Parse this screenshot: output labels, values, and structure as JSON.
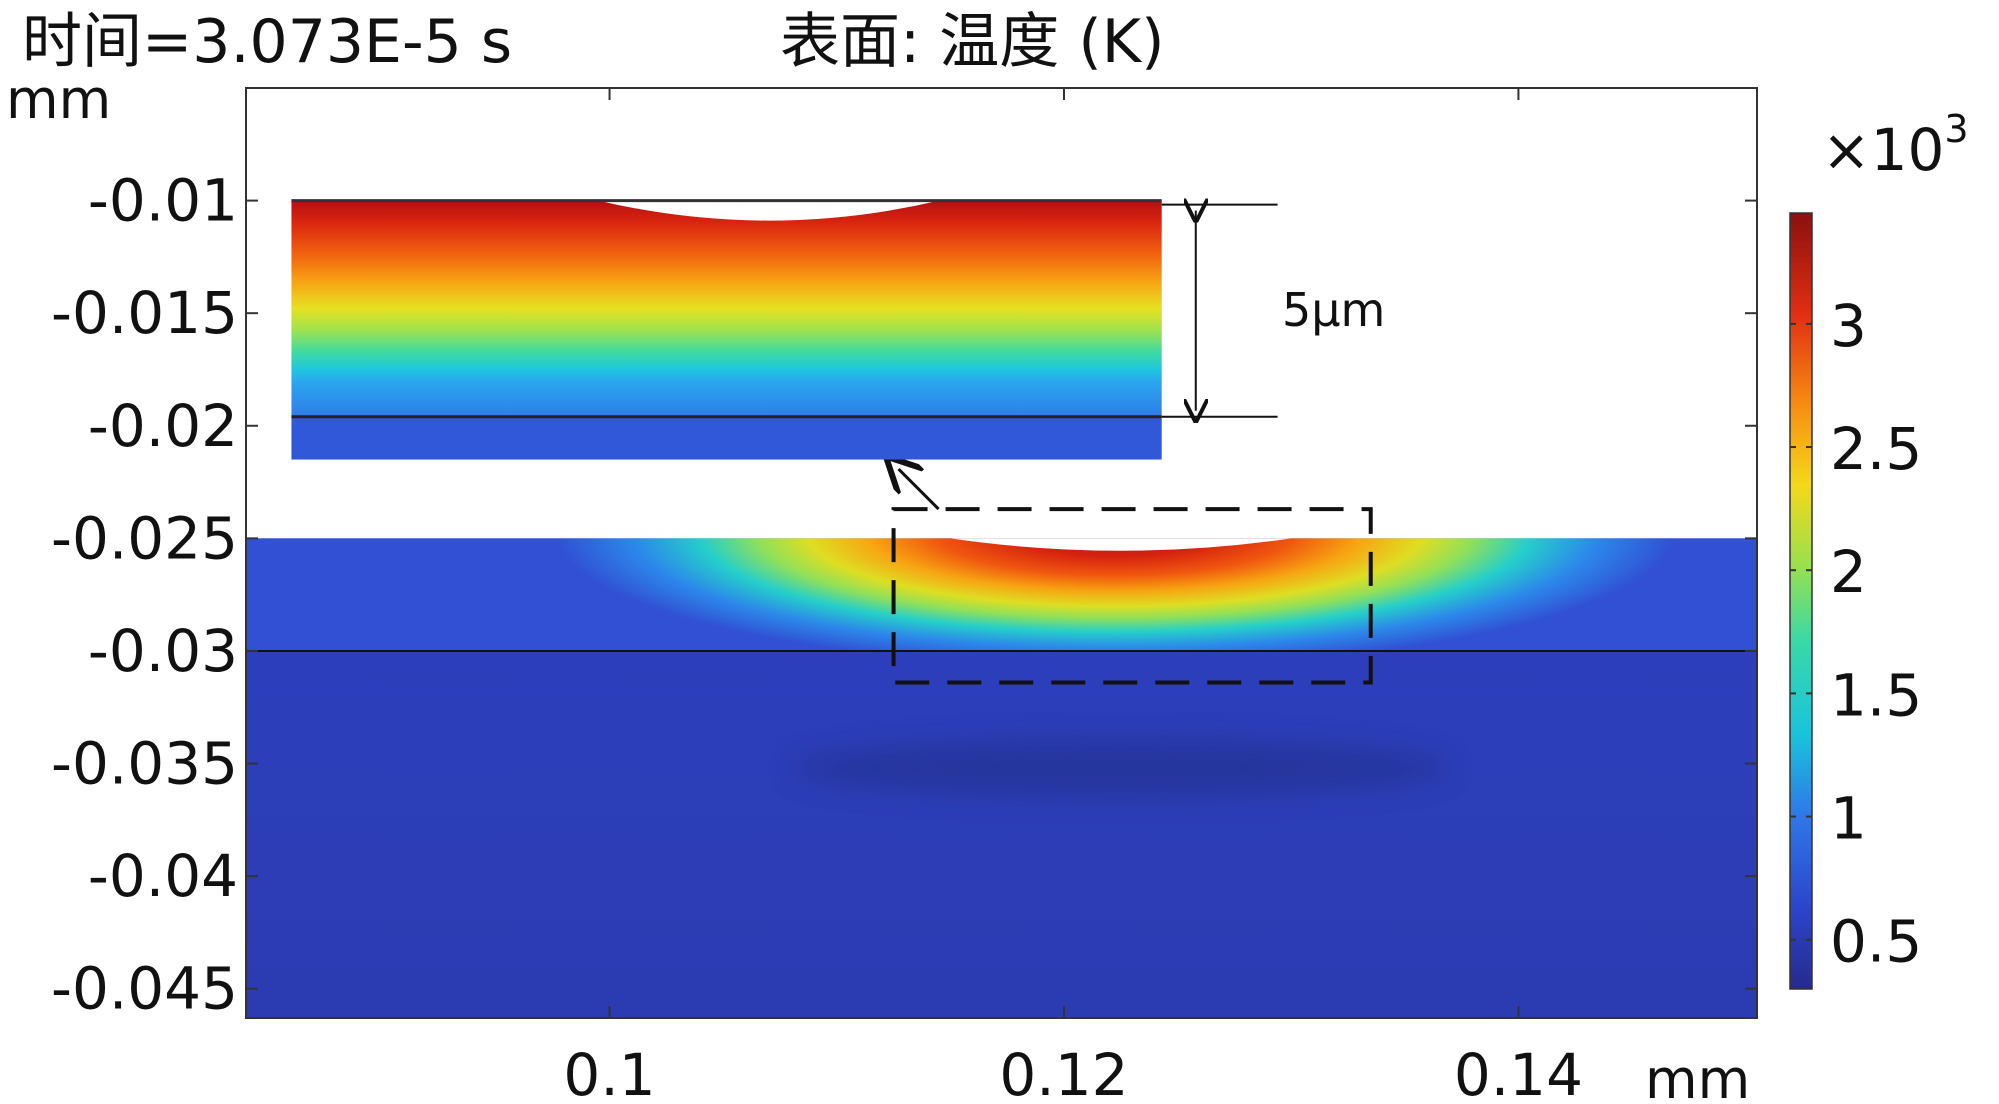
{
  "header": {
    "time_label": "时间=3.073E-5 s",
    "plot_title": "表面: 温度 (K)"
  },
  "chart_data": {
    "type": "heatmap",
    "title": "表面: 温度 (K)",
    "time_label": "时间=3.073E-5 s",
    "xlabel": "mm",
    "ylabel": "mm",
    "xlim": [
      0.084,
      0.1505
    ],
    "ylim": [
      -0.0463,
      -0.005
    ],
    "x_ticks": [
      {
        "value": 0.1,
        "label": "0.1"
      },
      {
        "value": 0.12,
        "label": "0.12"
      },
      {
        "value": 0.14,
        "label": "0.14"
      }
    ],
    "y_ticks": [
      {
        "value": -0.01,
        "label": "-0.01"
      },
      {
        "value": -0.015,
        "label": "-0.015"
      },
      {
        "value": -0.02,
        "label": "-0.02"
      },
      {
        "value": -0.025,
        "label": "-0.025"
      },
      {
        "value": -0.03,
        "label": "-0.03"
      },
      {
        "value": -0.035,
        "label": "-0.035"
      },
      {
        "value": -0.04,
        "label": "-0.04"
      },
      {
        "value": -0.045,
        "label": "-0.045"
      }
    ],
    "grid": false,
    "colormap": "rainbow",
    "colorbar": {
      "multiplier_prefix": "×10",
      "multiplier_exp": "3",
      "min": 0.3,
      "max": 3.45,
      "ticks": [
        {
          "value": 0.5,
          "label": "0.5"
        },
        {
          "value": 1,
          "label": "1"
        },
        {
          "value": 1.5,
          "label": "1.5"
        },
        {
          "value": 2,
          "label": "2"
        },
        {
          "value": 2.5,
          "label": "2.5"
        },
        {
          "value": 3,
          "label": "3"
        }
      ]
    },
    "domain": {
      "x_start": 0.084,
      "x_end": 0.1505,
      "top_y": -0.025,
      "layer_interface_y": -0.03,
      "melt_pool_center_x": 0.1225,
      "melt_pool_half_width": 0.0075,
      "melt_pool_depth": 0.00055
    },
    "zoom_box": {
      "x": [
        0.1125,
        0.1335
      ],
      "y": [
        -0.0314,
        -0.0237
      ]
    },
    "inset": {
      "label": "5μm",
      "thickness_um": 5,
      "x": [
        0.086,
        0.1243
      ],
      "y": [
        -0.0215,
        -0.01
      ]
    }
  }
}
